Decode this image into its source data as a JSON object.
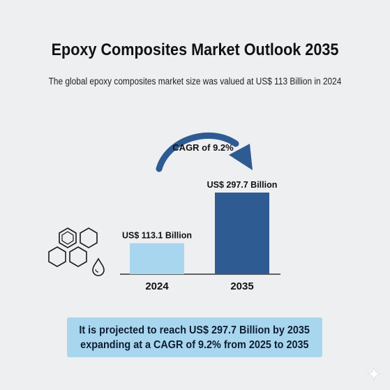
{
  "header": {
    "title": "Epoxy Composites Market Outlook 2035",
    "subtitle": "The global epoxy composites market size was valued at US$ 113 Billion in 2024"
  },
  "chart_data": {
    "type": "bar",
    "categories": [
      "2024",
      "2035"
    ],
    "values": [
      113.1,
      297.7
    ],
    "data_labels": [
      "US$ 113.1 Billion",
      "US$ 297.7 Billion"
    ],
    "bar_colors": [
      "#a9d6ef",
      "#2e5b92"
    ],
    "annotation": "CAGR of 9.2%",
    "annotation_color": "#2e5b92",
    "grid": false,
    "legend": "none"
  },
  "callout": {
    "line1": "It is projected to reach US$ 297.7 Billion by  2035",
    "line2": "expanding at a CAGR of 9.2% from 2025 to 2035",
    "background": "#a9d6ef"
  },
  "icons": [
    "hexagon-cluster-icon",
    "droplet-icon",
    "sparkle-icon"
  ]
}
